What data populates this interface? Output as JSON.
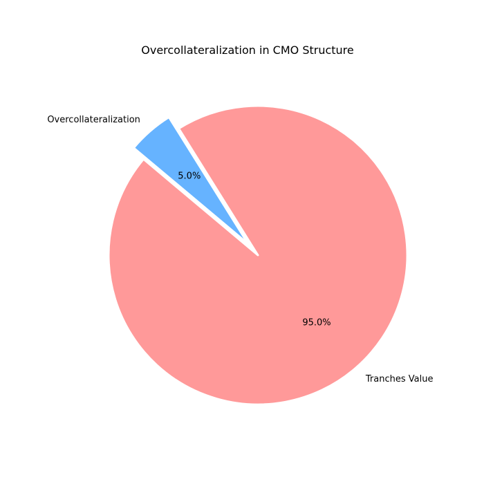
{
  "chart_data": {
    "type": "pie",
    "title": "Overcollateralization in CMO Structure",
    "slices": [
      {
        "label": "Tranches Value",
        "value": 95.0,
        "percent_label": "95.0%",
        "color": "#ff9999",
        "exploded": false
      },
      {
        "label": "Overcollateralization",
        "value": 5.0,
        "percent_label": "5.0%",
        "color": "#66b3ff",
        "exploded": true
      }
    ],
    "start_angle_degrees": 140,
    "direction": "counterclockwise",
    "edge_color": "#ffffff"
  }
}
